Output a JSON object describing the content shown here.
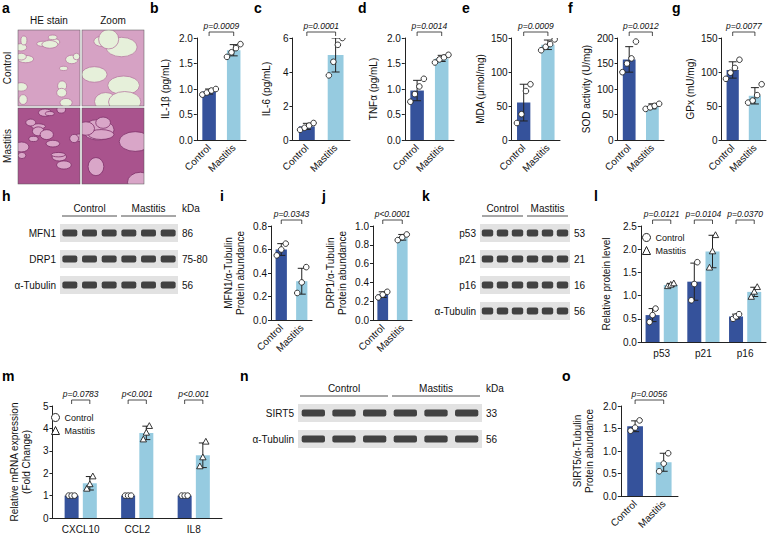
{
  "chart_data": [
    {
      "type": "bar",
      "panel_label": "b",
      "ylabel": "IL-1β (pg/mL)",
      "categories": [
        "Control",
        "Mastitis"
      ],
      "values": [
        0.95,
        1.76
      ],
      "errors": [
        0.05,
        0.11
      ],
      "points": [
        [
          0.89,
          0.93,
          0.97,
          1.0
        ],
        [
          1.63,
          1.72,
          1.8,
          1.88
        ]
      ],
      "colors": [
        "#35529b",
        "#96cbe0"
      ],
      "marker": "circle",
      "ylim": [
        0,
        2
      ],
      "yticks": [
        {
          "value": 0,
          "label": "0.0"
        },
        {
          "value": 0.5,
          "label": "0.5"
        },
        {
          "value": 1,
          "label": "1.0"
        },
        {
          "value": 1.5,
          "label": "1.5"
        },
        {
          "value": 2,
          "label": "2.0"
        }
      ],
      "annotations": [
        {
          "text": "p=0.0009"
        }
      ]
    },
    {
      "type": "bar",
      "panel_label": "c",
      "ylabel": "IL-6 (pg/mL)",
      "categories": [
        "Control",
        "Mastitis"
      ],
      "values": [
        0.8,
        5.0
      ],
      "errors": [
        0.18,
        1.0
      ],
      "points": [
        [
          0.6,
          0.72,
          0.85,
          1.0
        ],
        [
          3.8,
          4.6,
          5.6,
          6.0
        ]
      ],
      "colors": [
        "#35529b",
        "#96cbe0"
      ],
      "marker": "circle",
      "ylim": [
        0,
        6
      ],
      "yticks": [
        0,
        2,
        4,
        6
      ],
      "annotations": [
        {
          "text": "p=0.0001"
        }
      ]
    },
    {
      "type": "bar",
      "panel_label": "d",
      "ylabel": "TNFα (pg/mL)",
      "categories": [
        "Control",
        "Mastitis"
      ],
      "values": [
        0.97,
        1.6
      ],
      "errors": [
        0.2,
        0.06
      ],
      "points": [
        [
          0.75,
          0.9,
          1.05,
          1.2
        ],
        [
          1.52,
          1.58,
          1.62,
          1.67
        ]
      ],
      "colors": [
        "#35529b",
        "#96cbe0"
      ],
      "marker": "circle",
      "ylim": [
        0,
        2
      ],
      "yticks": [
        {
          "value": 0,
          "label": "0.0"
        },
        {
          "value": 0.5,
          "label": "0.5"
        },
        {
          "value": 1,
          "label": "1.0"
        },
        {
          "value": 1.5,
          "label": "1.5"
        },
        {
          "value": 2,
          "label": "2.0"
        }
      ],
      "annotations": [
        {
          "text": "p=0.0014"
        }
      ]
    },
    {
      "type": "bar",
      "panel_label": "e",
      "ylabel": "MDA (μmol/mg)",
      "categories": [
        "Control",
        "Mastitis"
      ],
      "values": [
        55,
        140
      ],
      "errors": [
        27,
        7
      ],
      "points": [
        [
          25,
          38,
          72,
          82
        ],
        [
          132,
          137,
          141,
          148
        ]
      ],
      "colors": [
        "#35529b",
        "#96cbe0"
      ],
      "marker": "circle",
      "ylim": [
        0,
        150
      ],
      "yticks": [
        0,
        50,
        100,
        150
      ],
      "annotations": [
        {
          "text": "p=0.0009"
        }
      ]
    },
    {
      "type": "bar",
      "panel_label": "f",
      "ylabel": "SOD activity (U/mg)",
      "categories": [
        "Control",
        "Mastitis"
      ],
      "values": [
        158,
        66
      ],
      "errors": [
        25,
        5
      ],
      "points": [
        [
          133,
          150,
          160,
          193
        ],
        [
          61,
          64,
          67,
          71
        ]
      ],
      "colors": [
        "#35529b",
        "#96cbe0"
      ],
      "marker": "circle",
      "ylim": [
        0,
        200
      ],
      "yticks": [
        0,
        50,
        100,
        150,
        200
      ],
      "annotations": [
        {
          "text": "p=0.0012"
        }
      ]
    },
    {
      "type": "bar",
      "panel_label": "g",
      "ylabel": "GPx (mU/mg)",
      "categories": [
        "Control",
        "Mastitis"
      ],
      "values": [
        103,
        65
      ],
      "errors": [
        12,
        12
      ],
      "points": [
        [
          90,
          99,
          106,
          118
        ],
        [
          55,
          58,
          66,
          82
        ]
      ],
      "colors": [
        "#35529b",
        "#96cbe0"
      ],
      "marker": "circle",
      "ylim": [
        0,
        150
      ],
      "yticks": [
        0,
        50,
        100,
        150
      ],
      "annotations": [
        {
          "text": "p=0.0077"
        }
      ]
    },
    {
      "type": "bar",
      "panel_label": "i",
      "ylabel": "MFN1/α-Tubulin Protein abundance",
      "categories": [
        "Control",
        "Mastitis"
      ],
      "values": [
        0.6,
        0.33
      ],
      "errors": [
        0.05,
        0.11
      ],
      "points": [
        [
          0.55,
          0.6,
          0.65
        ],
        [
          0.23,
          0.32,
          0.45
        ]
      ],
      "colors": [
        "#35529b",
        "#96cbe0"
      ],
      "marker": "circle",
      "ylim": [
        0,
        0.8
      ],
      "yticks": [
        {
          "value": 0,
          "label": "0.0"
        },
        {
          "value": 0.2,
          "label": "0.2"
        },
        {
          "value": 0.4,
          "label": "0.4"
        },
        {
          "value": 0.6,
          "label": "0.6"
        },
        {
          "value": 0.8,
          "label": "0.8"
        }
      ],
      "annotations": [
        {
          "text": "p=0.0343"
        }
      ]
    },
    {
      "type": "bar",
      "panel_label": "j",
      "ylabel": "DRP1/α-Tubulin Protein abundance",
      "categories": [
        "Control",
        "Mastitis"
      ],
      "values": [
        0.27,
        0.88
      ],
      "errors": [
        0.03,
        0.03
      ],
      "points": [
        [
          0.24,
          0.27,
          0.3
        ],
        [
          0.85,
          0.88,
          0.91
        ]
      ],
      "colors": [
        "#35529b",
        "#96cbe0"
      ],
      "marker": "circle",
      "ylim": [
        0,
        1
      ],
      "yticks": [
        {
          "value": 0,
          "label": "0.0"
        },
        {
          "value": 0.2,
          "label": "0.2"
        },
        {
          "value": 0.4,
          "label": "0.4"
        },
        {
          "value": 0.6,
          "label": "0.6"
        },
        {
          "value": 0.8,
          "label": "0.8"
        },
        {
          "value": 1,
          "label": "1.0"
        }
      ],
      "annotations": [
        {
          "text": "p<0.0001"
        }
      ]
    },
    {
      "type": "bar",
      "panel_label": "l",
      "ylabel": "Relative protein level",
      "categories": [
        "p53",
        "p21",
        "p16"
      ],
      "series": [
        {
          "name": "Control",
          "color": "#35529b",
          "marker": "circle",
          "values": [
            0.58,
            1.3,
            0.55
          ],
          "errors": [
            0.14,
            0.4,
            0.05
          ],
          "points": [
            [
              0.43,
              0.58,
              0.72
            ],
            [
              0.9,
              1.25,
              1.72
            ],
            [
              0.5,
              0.55,
              0.6
            ]
          ]
        },
        {
          "name": "Mastitis",
          "color": "#96cbe0",
          "marker": "triangle",
          "values": [
            1.23,
            1.95,
            1.08
          ],
          "errors": [
            0.03,
            0.35,
            0.1
          ],
          "points": [
            [
              1.2,
              1.23,
              1.26
            ],
            [
              1.6,
              1.95,
              2.3
            ],
            [
              0.97,
              1.08,
              1.18
            ]
          ]
        }
      ],
      "legend": "top-left",
      "ylim": [
        0,
        2.5
      ],
      "yticks": [
        {
          "value": 0,
          "label": "0.0"
        },
        {
          "value": 0.5,
          "label": "0.5"
        },
        {
          "value": 1,
          "label": "1.0"
        },
        {
          "value": 1.5,
          "label": "1.5"
        },
        {
          "value": 2,
          "label": "2.0"
        },
        {
          "value": 2.5,
          "label": "2.5"
        }
      ],
      "annotations": [
        {
          "category": "p53",
          "text": "p=0.0121"
        },
        {
          "category": "p21",
          "text": "p=0.0104"
        },
        {
          "category": "p16",
          "text": "p=0.0370"
        }
      ]
    },
    {
      "type": "bar",
      "panel_label": "m",
      "ylabel": "Relative mRNA expression (Fold Change)",
      "categories": [
        "CXCL10",
        "CCL2",
        "IL8"
      ],
      "series": [
        {
          "name": "Control",
          "color": "#35529b",
          "marker": "circle",
          "values": [
            1,
            1,
            1
          ],
          "errors": [
            0,
            0,
            0
          ],
          "points": [
            [
              1,
              1,
              1
            ],
            [
              1,
              1,
              1
            ],
            [
              1,
              1,
              1
            ]
          ]
        },
        {
          "name": "Mastitis",
          "color": "#96cbe0",
          "marker": "triangle",
          "values": [
            1.55,
            3.8,
            2.8
          ],
          "errors": [
            0.3,
            0.3,
            0.55
          ],
          "points": [
            [
              1.3,
              1.5,
              1.85
            ],
            [
              3.5,
              3.8,
              4.1
            ],
            [
              2.3,
              2.7,
              3.4
            ]
          ]
        }
      ],
      "legend": "top-left",
      "ylim": [
        0,
        5
      ],
      "yticks": [
        0,
        1,
        2,
        3,
        4,
        5
      ],
      "annotations": [
        {
          "category": "CXCL10",
          "text": "p=0.0783"
        },
        {
          "category": "CCL2",
          "text": "p<0.001"
        },
        {
          "category": "IL8",
          "text": "p<0.001"
        }
      ]
    },
    {
      "type": "bar",
      "panel_label": "o",
      "ylabel": "SIRT5/α-Tubulin Protein abundance",
      "categories": [
        "Control",
        "Mastitis"
      ],
      "values": [
        1.55,
        0.75
      ],
      "errors": [
        0.12,
        0.2
      ],
      "points": [
        [
          1.45,
          1.52,
          1.68
        ],
        [
          0.55,
          0.72,
          0.95
        ]
      ],
      "colors": [
        "#35529b",
        "#96cbe0"
      ],
      "marker": "circle",
      "ylim": [
        0,
        2
      ],
      "yticks": [
        {
          "value": 0,
          "label": "0.0"
        },
        {
          "value": 0.5,
          "label": "0.5"
        },
        {
          "value": 1,
          "label": "1.0"
        },
        {
          "value": 1.5,
          "label": "1.5"
        },
        {
          "value": 2,
          "label": "2.0"
        }
      ],
      "annotations": [
        {
          "text": "p=0.0056"
        }
      ]
    }
  ],
  "images": {
    "he_stain": {
      "panel_label": "a",
      "columns": [
        "HE stain",
        "Zoom"
      ],
      "rows": [
        "Control",
        "Mastitis"
      ]
    },
    "blots": [
      {
        "panel_label": "h",
        "groups": [
          "Control",
          "Mastitis"
        ],
        "lanes_per_group": 3,
        "unit": "kDa",
        "bands": [
          {
            "label": "MFN1",
            "kda": "86"
          },
          {
            "label": "DRP1",
            "kda": "75-80"
          },
          {
            "label": "α-Tubulin",
            "kda": "56"
          }
        ]
      },
      {
        "panel_label": "k",
        "groups": [
          "Control",
          "Mastitis"
        ],
        "lanes_per_group": 3,
        "bands": [
          {
            "label": "p53",
            "kda": "53"
          },
          {
            "label": "p21",
            "kda": "21"
          },
          {
            "label": "p16",
            "kda": "16"
          },
          {
            "label": "α-Tubulin",
            "kda": "56"
          }
        ]
      },
      {
        "panel_label": "n",
        "groups": [
          "Control",
          "Mastitis"
        ],
        "lanes_per_group": 3,
        "unit": "kDa",
        "bands": [
          {
            "label": "SIRT5",
            "kda": "33"
          },
          {
            "label": "α-Tubulin",
            "kda": "56"
          }
        ]
      }
    ]
  }
}
